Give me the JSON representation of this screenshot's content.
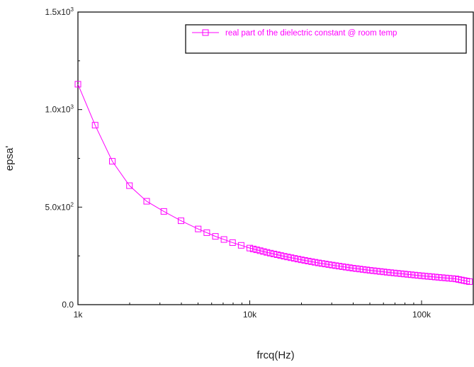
{
  "chart_data": {
    "type": "line",
    "x_scale": "log",
    "xlabel": "frcq(Hz)",
    "ylabel": "epsa'",
    "xlim": [
      1000,
      200000
    ],
    "ylim": [
      0,
      1500
    ],
    "x_ticks": [
      {
        "value": 1000,
        "label": "1k"
      },
      {
        "value": 10000,
        "label": "10k"
      },
      {
        "value": 100000,
        "label": "100k"
      }
    ],
    "y_ticks": [
      {
        "value": 0,
        "label": "0.0"
      },
      {
        "value": 500,
        "label": "5.0x10",
        "sup": "2"
      },
      {
        "value": 1000,
        "label": "1.0x10",
        "sup": "3"
      },
      {
        "value": 1500,
        "label": "1.5x10",
        "sup": "3"
      }
    ],
    "grid": false,
    "legend_position": "top-right",
    "series": [
      {
        "name": "real part of the dielectric constant @ room temp",
        "color": "#ff00ff",
        "marker": "square-open",
        "x": [
          1000,
          1259,
          1585,
          1995,
          2512,
          3162,
          3981,
          5012,
          6310,
          7943,
          10000,
          12589,
          15849,
          19953,
          25119,
          31623,
          39811,
          50119,
          63096,
          79433,
          100000,
          125893,
          158489,
          190000
        ],
        "y": [
          1130,
          920,
          735,
          610,
          530,
          478,
          430,
          388,
          350,
          318,
          290,
          268,
          248,
          230,
          214,
          200,
          187,
          176,
          166,
          157,
          148,
          140,
          132,
          118
        ]
      }
    ]
  }
}
